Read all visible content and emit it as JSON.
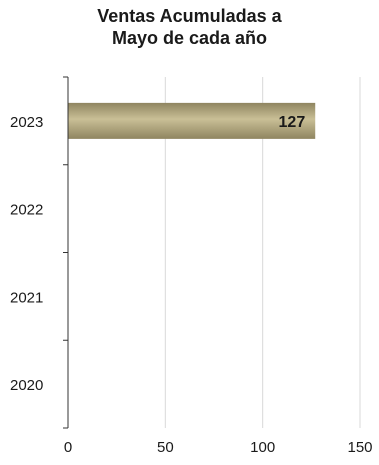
{
  "chart_data": {
    "type": "bar",
    "orientation": "horizontal",
    "title_lines": [
      "Ventas Acumuladas  a",
      "Mayo de cada año"
    ],
    "categories": [
      "2023",
      "2022",
      "2021",
      "2020"
    ],
    "values": [
      127,
      null,
      null,
      null
    ],
    "data_labels": [
      "127",
      "",
      "",
      ""
    ],
    "xlim": [
      0,
      150
    ],
    "xticks": [
      0,
      50,
      100,
      150
    ],
    "grid": "vertical",
    "legend": "none",
    "colors": {
      "bar_dark": "#8f8560",
      "bar_light": "#c9bf96",
      "grid": "#d9d9d9",
      "axis": "#333333",
      "text": "#1a1a1a"
    }
  }
}
